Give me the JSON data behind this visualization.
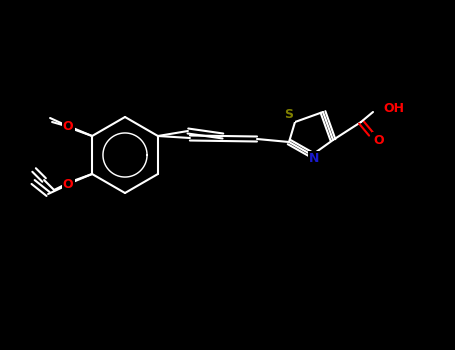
{
  "background_color": "#000000",
  "fig_width": 4.55,
  "fig_height": 3.5,
  "dpi": 100,
  "bond_color": "#ffffff",
  "bond_lw": 1.5,
  "colors": {
    "S": "#808000",
    "N": "#1a1acd",
    "O": "#ff0000",
    "C": "#ffffff"
  },
  "font_size": 9,
  "font_weight": "bold"
}
